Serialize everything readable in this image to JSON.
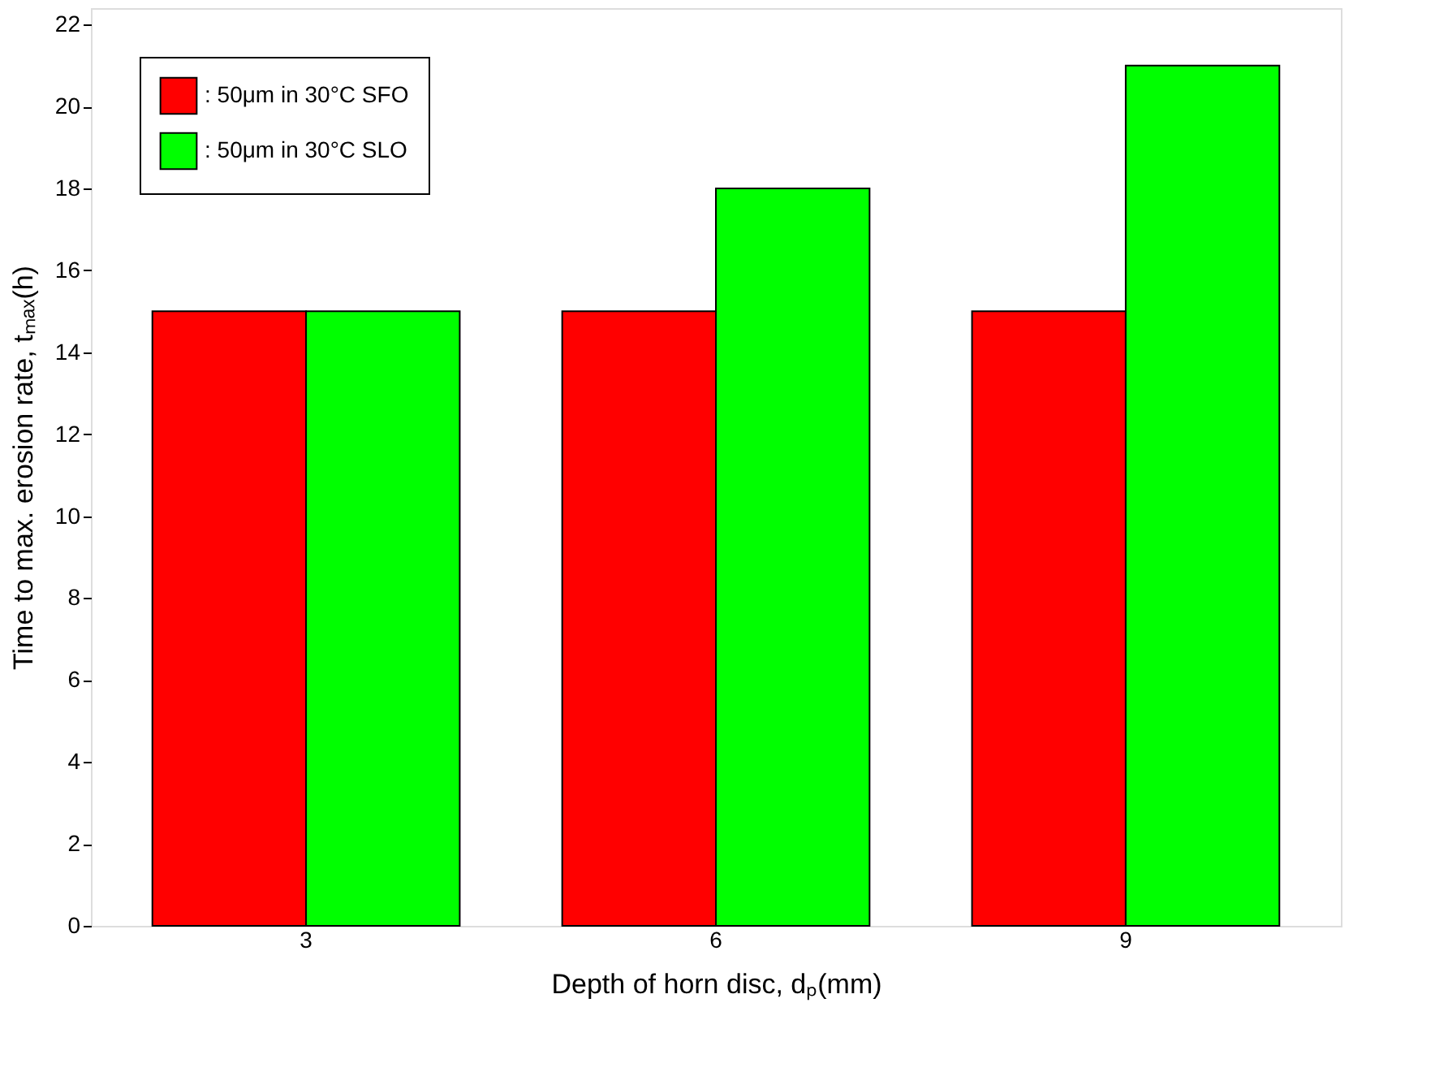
{
  "chart_data": {
    "type": "bar",
    "xlabel": "Depth of horn disc, dₚ(mm)",
    "ylabel": "Time to max. erosion rate, tₘₐₓ(h)",
    "categories": [
      "3",
      "6",
      "9"
    ],
    "series": [
      {
        "name": ": 50μm in 30°C SFO",
        "color": "#ff0000",
        "values": [
          15,
          15,
          15
        ]
      },
      {
        "name": ": 50μm in 30°C SLO",
        "color": "#00ff00",
        "values": [
          15,
          18,
          21
        ]
      }
    ],
    "ylim": [
      0,
      22.4
    ],
    "yticks": [
      0,
      2,
      4,
      6,
      8,
      10,
      12,
      14,
      16,
      18,
      20,
      22
    ],
    "grid": false,
    "legend": "top left"
  }
}
